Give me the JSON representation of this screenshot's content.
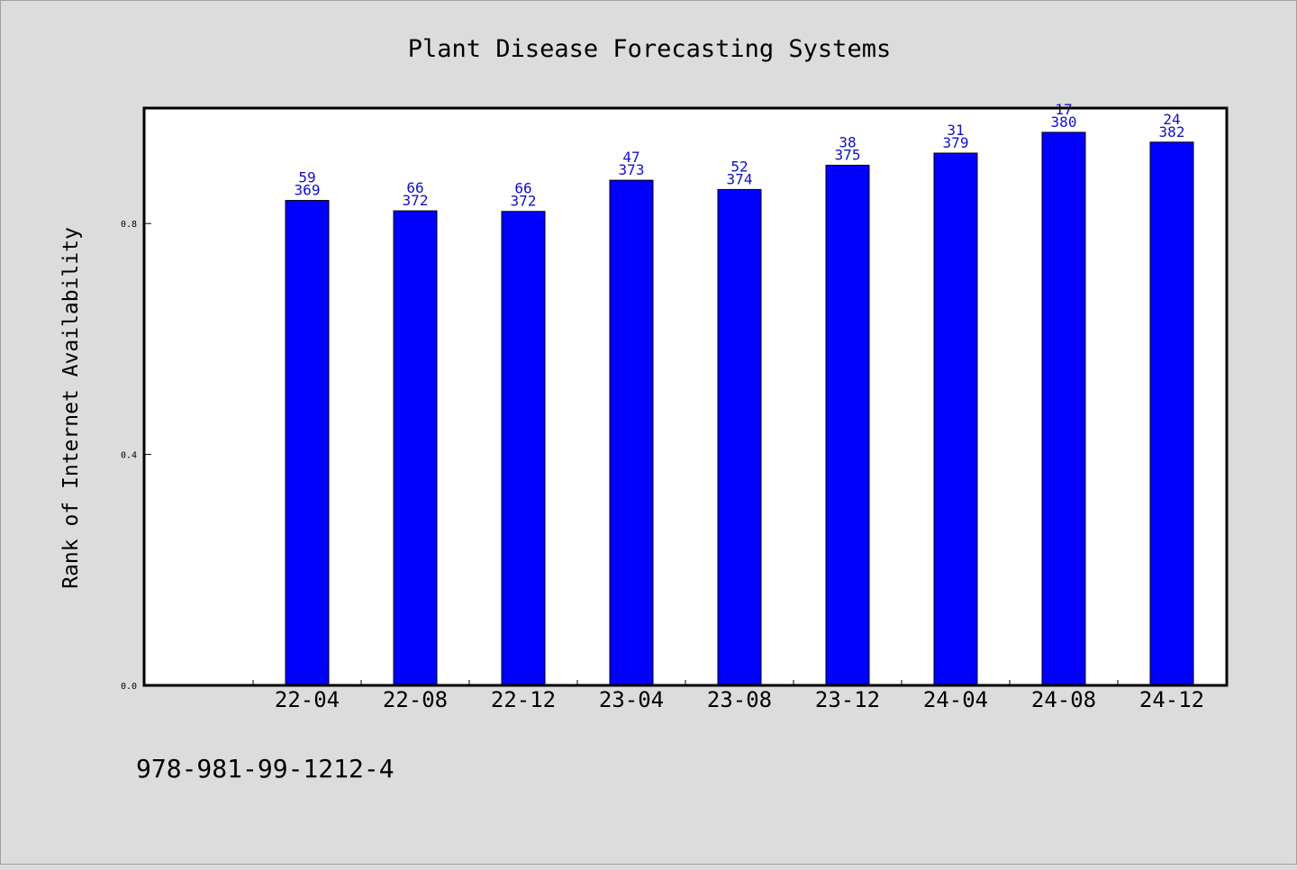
{
  "chart_data": {
    "type": "bar",
    "title": "Plant Disease Forecasting Systems",
    "xlabel": "",
    "ylabel": "Rank of Internet Availability",
    "categories": [
      "22-04",
      "22-08",
      "22-12",
      "23-04",
      "23-08",
      "23-12",
      "24-04",
      "24-08",
      "24-12"
    ],
    "values": [
      0.84,
      0.822,
      0.821,
      0.875,
      0.859,
      0.901,
      0.922,
      0.958,
      0.941
    ],
    "labels_top": [
      "59",
      "66",
      "66",
      "47",
      "52",
      "38",
      "31",
      "17",
      "24"
    ],
    "labels_bottom": [
      "369",
      "372",
      "372",
      "373",
      "374",
      "375",
      "379",
      "380",
      "382"
    ],
    "ylim": [
      0,
      1.0
    ],
    "yticks": [
      0.0,
      0.4,
      0.8
    ],
    "ytick_labels": [
      "0.0",
      "0.4",
      "0.8"
    ],
    "grid": false,
    "bar_color": "#0000ff",
    "label_color": "#1010c8"
  },
  "footer": {
    "code": "978-981-99-1212-4"
  }
}
